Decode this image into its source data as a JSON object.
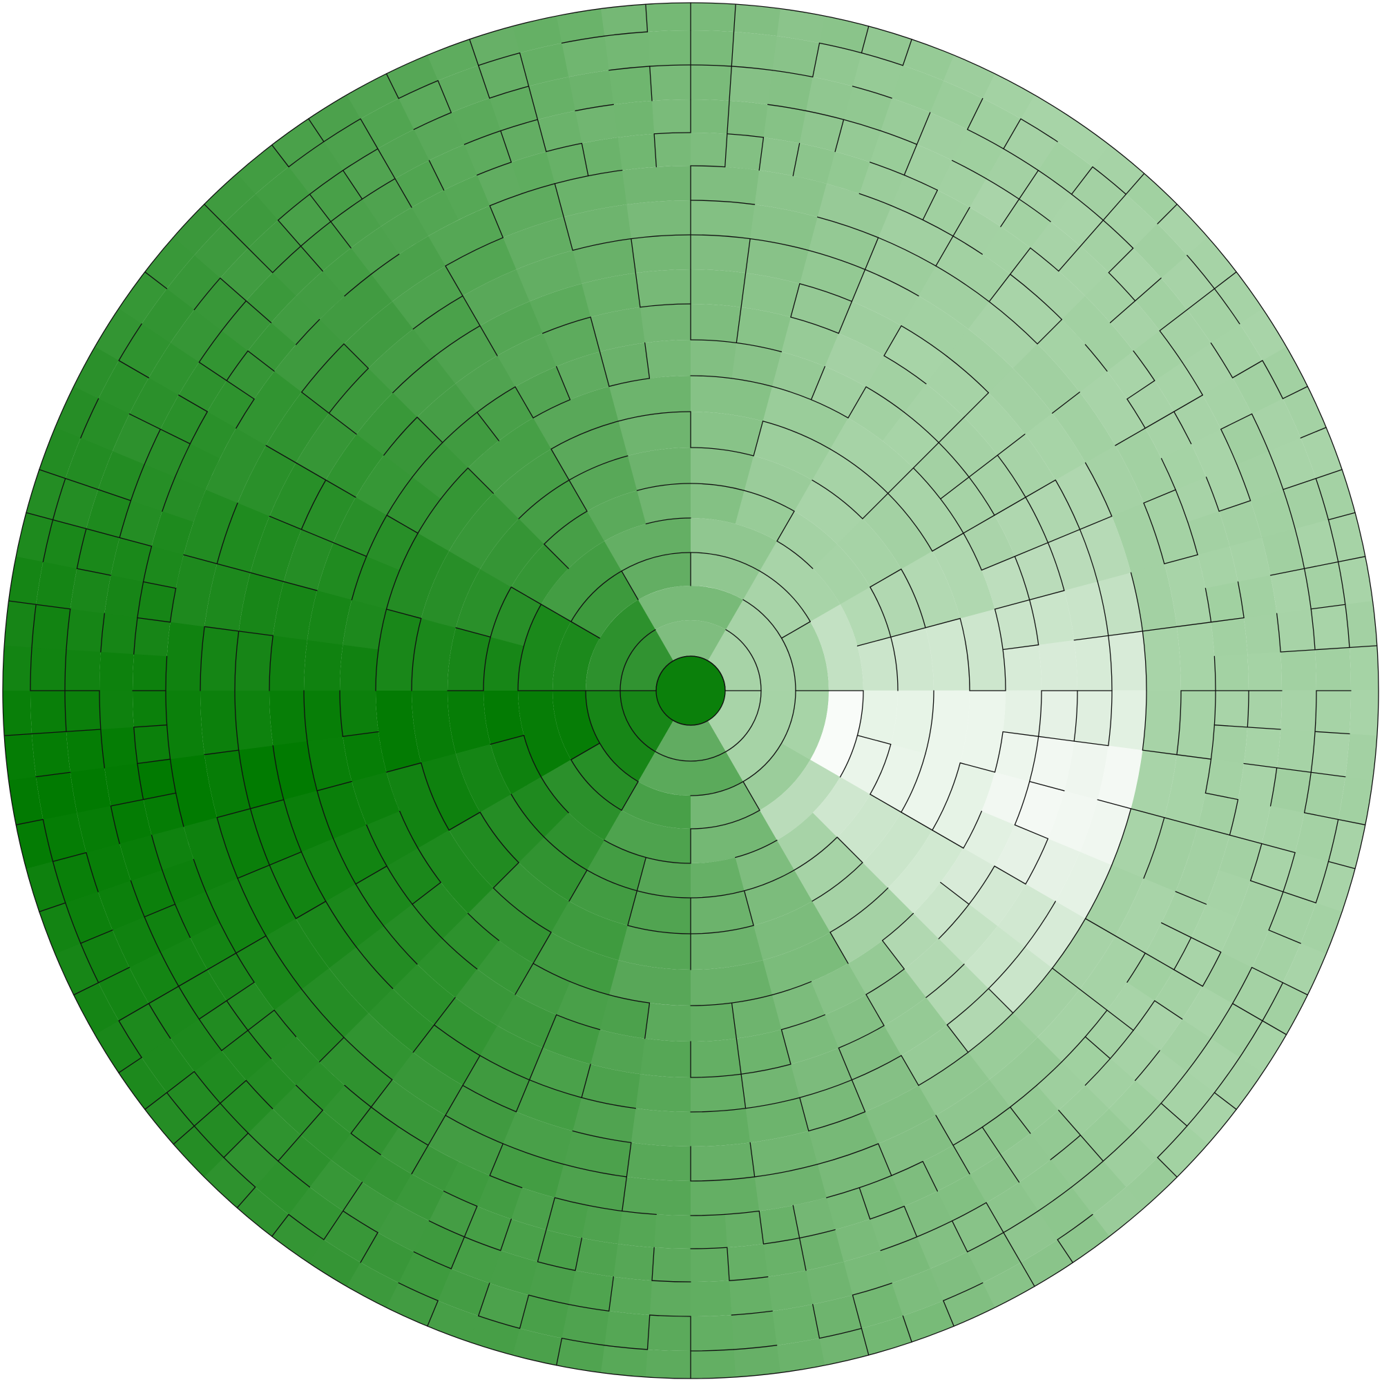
{
  "maze": {
    "type": "circular-maze",
    "rings": 9,
    "sector_counts": [
      1,
      6,
      12,
      24,
      24,
      48,
      48,
      48,
      96,
      96
    ],
    "colors": {
      "darkest": "#007a00",
      "mid": "#4fa34f",
      "light": "#a6d3a6",
      "lightest": "#ffffff",
      "outline": "#111111",
      "background": "#ffffff"
    }
  }
}
